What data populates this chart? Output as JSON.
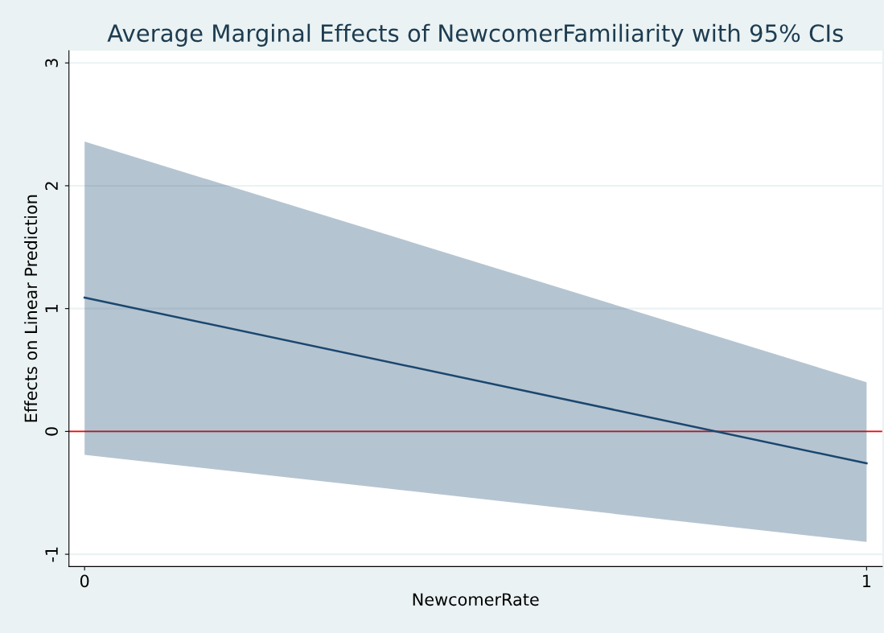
{
  "chart_data": {
    "type": "line",
    "title": "Average Marginal Effects of NewcomerFamiliarity with 95% CIs",
    "xlabel": "NewcomerRate",
    "ylabel": "Effects on Linear Prediction",
    "x": [
      0,
      1
    ],
    "series": [
      {
        "color": "#1a476f",
        "values": [
          1.09,
          -0.26
        ],
        "lower": [
          -0.19,
          -0.9
        ],
        "upper": [
          2.36,
          0.4
        ]
      }
    ],
    "xlim": [
      -0.02,
      1.02
    ],
    "ylim": [
      -1.1,
      3.1
    ],
    "xticks": [
      0,
      1
    ],
    "yticks": [
      -1,
      0,
      1,
      2,
      3
    ],
    "grid": "y",
    "legend": false,
    "marker": "none",
    "line_style": "solid",
    "ref_lines": [
      {
        "axis": "y",
        "value": 0,
        "color": "#ff0000"
      }
    ]
  }
}
